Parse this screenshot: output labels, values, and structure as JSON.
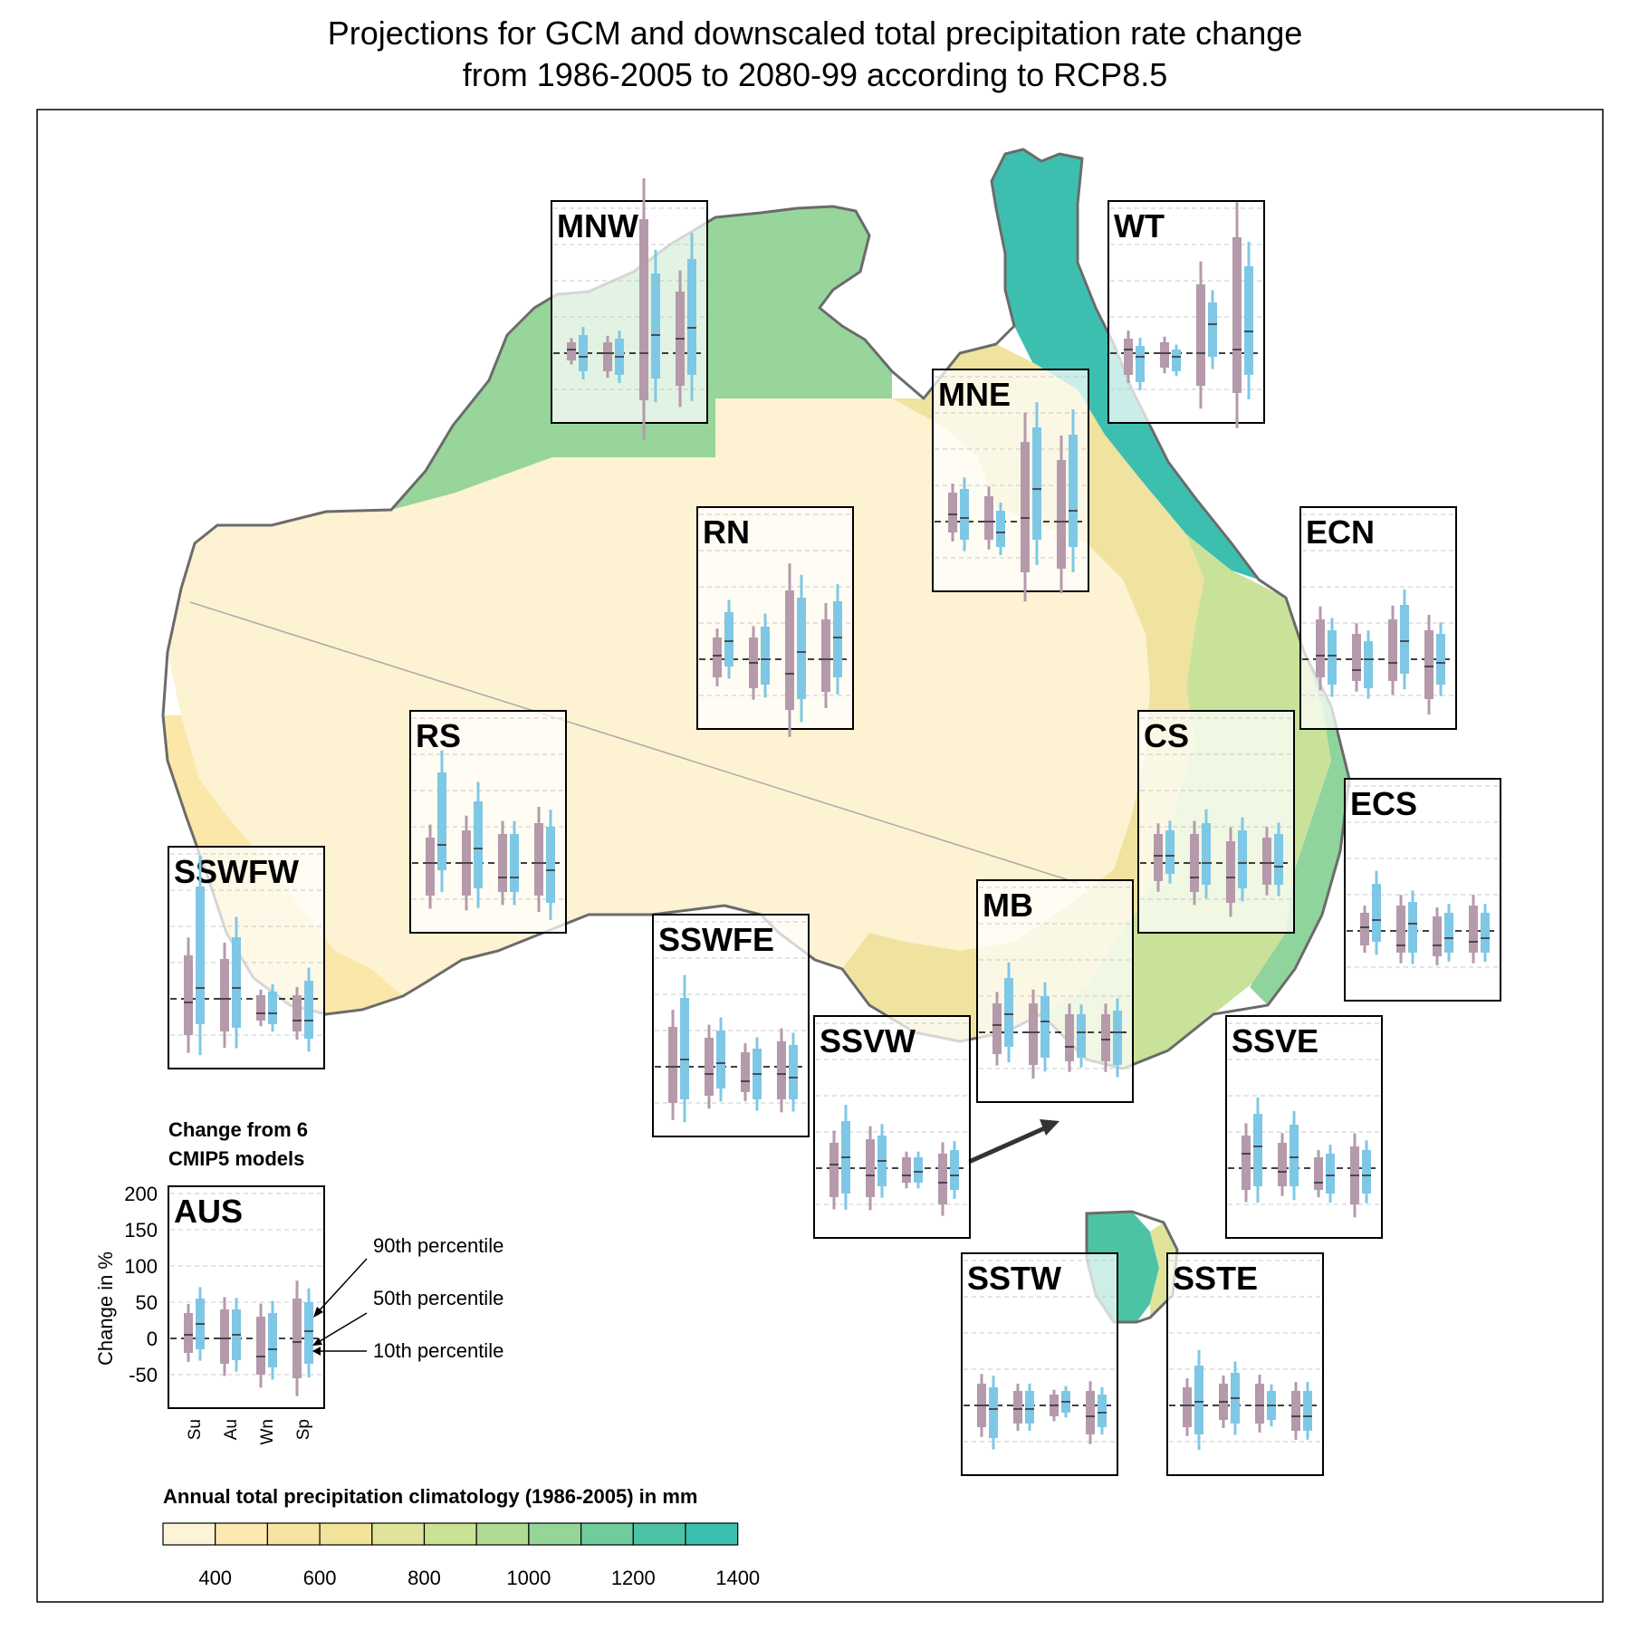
{
  "title": {
    "line1": "Projections for GCM and downscaled total precipitation rate change",
    "line2": "from 1986-2005 to 2080-99 according to RCP8.5"
  },
  "colors": {
    "gcm": "#b59aab",
    "downscaled": "#7ec8e6",
    "frame": "#000000",
    "coast": "#6b6b6b",
    "scale": [
      "#fdf3d6",
      "#fbe9b0",
      "#f7e3a0",
      "#f1e39a",
      "#dfe49a",
      "#c9e294",
      "#aedc92",
      "#95d598",
      "#6fcc9d",
      "#4bc4a6",
      "#3bbfb0"
    ]
  },
  "legend": {
    "models_line1": "Change from 6",
    "models_line2": "CMIP5 models",
    "axis_label": "Change in %",
    "yticks": [
      "200",
      "150",
      "100",
      "50",
      "0",
      "-50"
    ],
    "seasons": [
      "Su",
      "Au",
      "Wn",
      "Sp"
    ],
    "p90": "90th percentile",
    "p50": "50th percentile",
    "p10": "10th percentile"
  },
  "colorbar": {
    "title": "Annual total precipitation climatology (1986-2005) in mm",
    "ticks": [
      "400",
      "600",
      "800",
      "1000",
      "1200",
      "1400"
    ]
  },
  "chart_data": {
    "type": "box",
    "description_units": "Change in %",
    "ylim": [
      -100,
      200
    ],
    "seasons": [
      "Su",
      "Au",
      "Wn",
      "Sp"
    ],
    "series": [
      "GCM",
      "Downscaled"
    ],
    "regions": [
      {
        "name": "MNW",
        "gcm": [
          [
            -10,
            5,
            15
          ],
          [
            -25,
            0,
            15
          ],
          [
            -65,
            0,
            185
          ],
          [
            -45,
            20,
            85
          ]
        ],
        "ds": [
          [
            -25,
            -5,
            25
          ],
          [
            -30,
            -5,
            20
          ],
          [
            -35,
            25,
            110
          ],
          [
            -30,
            35,
            130
          ]
        ]
      },
      {
        "name": "WT",
        "gcm": [
          [
            -30,
            5,
            20
          ],
          [
            -20,
            0,
            15
          ],
          [
            -45,
            0,
            95
          ],
          [
            -55,
            5,
            160
          ]
        ],
        "ds": [
          [
            -40,
            -5,
            10
          ],
          [
            -25,
            -5,
            5
          ],
          [
            -5,
            40,
            70
          ],
          [
            -30,
            30,
            120
          ]
        ]
      },
      {
        "name": "MNE",
        "gcm": [
          [
            -15,
            10,
            40
          ],
          [
            -25,
            0,
            35
          ],
          [
            -70,
            5,
            110
          ],
          [
            -65,
            0,
            85
          ]
        ],
        "ds": [
          [
            -25,
            5,
            45
          ],
          [
            -35,
            -15,
            15
          ],
          [
            -25,
            45,
            130
          ],
          [
            -35,
            15,
            120
          ]
        ]
      },
      {
        "name": "RN",
        "gcm": [
          [
            -25,
            5,
            30
          ],
          [
            -40,
            -5,
            30
          ],
          [
            -70,
            -20,
            95
          ],
          [
            -45,
            0,
            55
          ]
        ],
        "ds": [
          [
            -10,
            25,
            65
          ],
          [
            -35,
            0,
            45
          ],
          [
            -55,
            10,
            85
          ],
          [
            -25,
            30,
            80
          ]
        ]
      },
      {
        "name": "ECN",
        "gcm": [
          [
            -25,
            5,
            55
          ],
          [
            -30,
            -15,
            35
          ],
          [
            -30,
            -5,
            55
          ],
          [
            -55,
            -10,
            40
          ]
        ],
        "ds": [
          [
            -35,
            5,
            40
          ],
          [
            -40,
            0,
            25
          ],
          [
            -20,
            25,
            75
          ],
          [
            -35,
            -5,
            35
          ]
        ]
      },
      {
        "name": "RS",
        "gcm": [
          [
            -45,
            0,
            35
          ],
          [
            -45,
            0,
            45
          ],
          [
            -40,
            -20,
            40
          ],
          [
            -45,
            0,
            55
          ]
        ],
        "ds": [
          [
            -10,
            25,
            125
          ],
          [
            -35,
            20,
            85
          ],
          [
            -40,
            -20,
            40
          ],
          [
            -55,
            -10,
            50
          ]
        ]
      },
      {
        "name": "CS",
        "gcm": [
          [
            -25,
            10,
            40
          ],
          [
            -40,
            -20,
            40
          ],
          [
            -55,
            -20,
            30
          ],
          [
            -30,
            0,
            35
          ]
        ],
        "ds": [
          [
            -15,
            10,
            45
          ],
          [
            -30,
            0,
            55
          ],
          [
            -35,
            0,
            45
          ],
          [
            -30,
            -5,
            40
          ]
        ]
      },
      {
        "name": "ECS",
        "gcm": [
          [
            -20,
            5,
            25
          ],
          [
            -30,
            -20,
            35
          ],
          [
            -35,
            -20,
            20
          ],
          [
            -30,
            -15,
            35
          ]
        ],
        "ds": [
          [
            -15,
            15,
            65
          ],
          [
            -30,
            10,
            40
          ],
          [
            -30,
            -10,
            25
          ],
          [
            -30,
            -10,
            25
          ]
        ]
      },
      {
        "name": "SSWFW",
        "gcm": [
          [
            -50,
            -5,
            60
          ],
          [
            -45,
            0,
            55
          ],
          [
            -30,
            -20,
            5
          ],
          [
            -45,
            -30,
            5
          ]
        ],
        "ds": [
          [
            -35,
            15,
            155
          ],
          [
            -40,
            15,
            85
          ],
          [
            -35,
            -20,
            10
          ],
          [
            -55,
            -30,
            25
          ]
        ]
      },
      {
        "name": "SSWFE",
        "gcm": [
          [
            -50,
            0,
            55
          ],
          [
            -40,
            -10,
            40
          ],
          [
            -35,
            -20,
            20
          ],
          [
            -45,
            -10,
            35
          ]
        ],
        "ds": [
          [
            -45,
            10,
            95
          ],
          [
            -30,
            5,
            50
          ],
          [
            -45,
            -10,
            25
          ],
          [
            -45,
            -15,
            30
          ]
        ]
      },
      {
        "name": "MB",
        "gcm": [
          [
            -30,
            10,
            40
          ],
          [
            -45,
            0,
            40
          ],
          [
            -40,
            -20,
            25
          ],
          [
            -40,
            -10,
            25
          ]
        ],
        "ds": [
          [
            -20,
            25,
            75
          ],
          [
            -35,
            15,
            50
          ],
          [
            -35,
            0,
            25
          ],
          [
            -45,
            0,
            30
          ]
        ]
      },
      {
        "name": "SSVW",
        "gcm": [
          [
            -40,
            5,
            35
          ],
          [
            -40,
            -10,
            40
          ],
          [
            -20,
            -10,
            15
          ],
          [
            -50,
            -20,
            20
          ]
        ],
        "ds": [
          [
            -35,
            15,
            65
          ],
          [
            -25,
            10,
            45
          ],
          [
            -20,
            -5,
            15
          ],
          [
            -30,
            -10,
            25
          ]
        ]
      },
      {
        "name": "SSVE",
        "gcm": [
          [
            -30,
            20,
            45
          ],
          [
            -25,
            -5,
            35
          ],
          [
            -30,
            -20,
            15
          ],
          [
            -50,
            -10,
            30
          ]
        ],
        "ds": [
          [
            -25,
            30,
            75
          ],
          [
            -25,
            15,
            60
          ],
          [
            -35,
            -10,
            20
          ],
          [
            -35,
            -10,
            25
          ]
        ]
      },
      {
        "name": "SSTW",
        "gcm": [
          [
            -30,
            0,
            30
          ],
          [
            -25,
            -5,
            20
          ],
          [
            -15,
            0,
            15
          ],
          [
            -40,
            -15,
            20
          ]
        ],
        "ds": [
          [
            -45,
            -5,
            25
          ],
          [
            -25,
            -5,
            20
          ],
          [
            -10,
            5,
            20
          ],
          [
            -30,
            -10,
            15
          ]
        ]
      },
      {
        "name": "SSTE",
        "gcm": [
          [
            -30,
            0,
            25
          ],
          [
            -20,
            5,
            30
          ],
          [
            -25,
            0,
            30
          ],
          [
            -35,
            -15,
            20
          ]
        ],
        "ds": [
          [
            -40,
            5,
            55
          ],
          [
            -25,
            10,
            45
          ],
          [
            -20,
            0,
            20
          ],
          [
            -35,
            -15,
            20
          ]
        ]
      },
      {
        "name": "AUS",
        "gcm": [
          [
            -20,
            5,
            35
          ],
          [
            -35,
            0,
            40
          ],
          [
            -50,
            -25,
            30
          ],
          [
            -55,
            -5,
            55
          ]
        ],
        "ds": [
          [
            -15,
            20,
            55
          ],
          [
            -30,
            5,
            40
          ],
          [
            -40,
            -15,
            35
          ],
          [
            -35,
            10,
            50
          ]
        ]
      }
    ]
  }
}
